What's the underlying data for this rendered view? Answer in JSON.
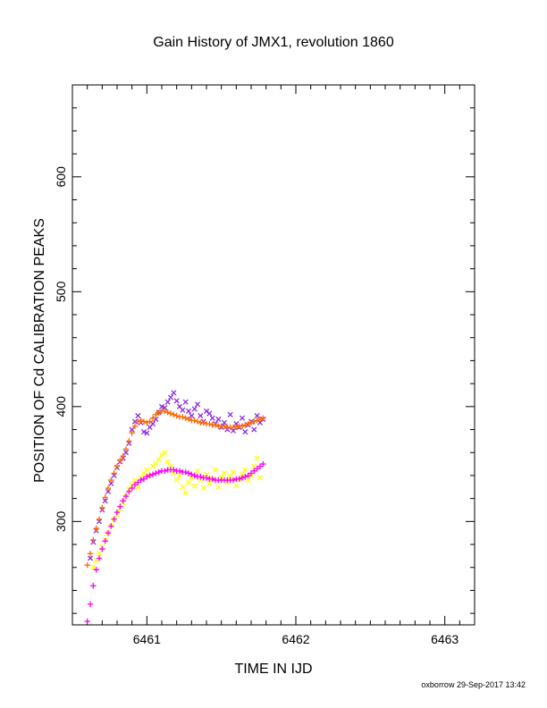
{
  "chart_data": {
    "type": "scatter",
    "title": "Gain History of JMX1, revolution 1860",
    "xlabel": "TIME IN IJD",
    "ylabel": "POSITION OF Cd CALIBRATION PEAKS",
    "xlim": [
      6460.5,
      6463.2
    ],
    "ylim": [
      210,
      680
    ],
    "x_ticks": [
      6461,
      6462,
      6463
    ],
    "y_ticks": [
      300,
      400,
      500,
      600
    ],
    "grid": false,
    "series": [
      {
        "marker": "x",
        "color": "#8a2be2",
        "points": [
          [
            6460.62,
            268
          ],
          [
            6460.64,
            282
          ],
          [
            6460.66,
            292
          ],
          [
            6460.68,
            300
          ],
          [
            6460.7,
            310
          ],
          [
            6460.72,
            318
          ],
          [
            6460.74,
            326
          ],
          [
            6460.76,
            333
          ],
          [
            6460.78,
            340
          ],
          [
            6460.8,
            347
          ],
          [
            6460.82,
            352
          ],
          [
            6460.84,
            355
          ],
          [
            6460.86,
            360
          ],
          [
            6460.88,
            368
          ],
          [
            6460.9,
            380
          ],
          [
            6460.92,
            387
          ],
          [
            6460.94,
            392
          ],
          [
            6460.96,
            386
          ],
          [
            6460.98,
            378
          ],
          [
            6461.0,
            377
          ],
          [
            6461.02,
            382
          ],
          [
            6461.04,
            385
          ],
          [
            6461.06,
            389
          ],
          [
            6461.08,
            395
          ],
          [
            6461.1,
            400
          ],
          [
            6461.12,
            399
          ],
          [
            6461.14,
            404
          ],
          [
            6461.16,
            408
          ],
          [
            6461.18,
            412
          ],
          [
            6461.2,
            405
          ],
          [
            6461.22,
            400
          ],
          [
            6461.24,
            397
          ],
          [
            6461.26,
            404
          ],
          [
            6461.28,
            396
          ],
          [
            6461.3,
            392
          ],
          [
            6461.32,
            398
          ],
          [
            6461.34,
            402
          ],
          [
            6461.36,
            392
          ],
          [
            6461.38,
            387
          ],
          [
            6461.4,
            396
          ],
          [
            6461.42,
            394
          ],
          [
            6461.44,
            390
          ],
          [
            6461.46,
            385
          ],
          [
            6461.48,
            389
          ],
          [
            6461.5,
            382
          ],
          [
            6461.52,
            386
          ],
          [
            6461.54,
            380
          ],
          [
            6461.56,
            393
          ],
          [
            6461.58,
            379
          ],
          [
            6461.6,
            385
          ],
          [
            6461.62,
            382
          ],
          [
            6461.64,
            390
          ],
          [
            6461.66,
            378
          ],
          [
            6461.68,
            384
          ],
          [
            6461.7,
            387
          ],
          [
            6461.72,
            380
          ],
          [
            6461.74,
            392
          ],
          [
            6461.76,
            386
          ],
          [
            6461.78,
            389
          ]
        ]
      },
      {
        "marker": "+",
        "color": "#ff6a00",
        "points": [
          [
            6460.6,
            262
          ],
          [
            6460.62,
            272
          ],
          [
            6460.64,
            284
          ],
          [
            6460.66,
            294
          ],
          [
            6460.68,
            302
          ],
          [
            6460.7,
            312
          ],
          [
            6460.72,
            321
          ],
          [
            6460.74,
            329
          ],
          [
            6460.76,
            336
          ],
          [
            6460.78,
            342
          ],
          [
            6460.8,
            348
          ],
          [
            6460.82,
            353
          ],
          [
            6460.84,
            357
          ],
          [
            6460.86,
            363
          ],
          [
            6460.88,
            370
          ],
          [
            6460.9,
            377
          ],
          [
            6460.92,
            383
          ],
          [
            6460.94,
            387
          ],
          [
            6460.96,
            388
          ],
          [
            6460.98,
            387
          ],
          [
            6461.0,
            386
          ],
          [
            6461.02,
            387
          ],
          [
            6461.04,
            390
          ],
          [
            6461.06,
            393
          ],
          [
            6461.08,
            395
          ],
          [
            6461.1,
            396
          ],
          [
            6461.12,
            396
          ],
          [
            6461.14,
            395
          ],
          [
            6461.16,
            394
          ],
          [
            6461.18,
            393
          ],
          [
            6461.2,
            392
          ],
          [
            6461.22,
            391
          ],
          [
            6461.24,
            391
          ],
          [
            6461.26,
            390
          ],
          [
            6461.28,
            389
          ],
          [
            6461.3,
            388
          ],
          [
            6461.32,
            388
          ],
          [
            6461.34,
            387
          ],
          [
            6461.36,
            386
          ],
          [
            6461.38,
            386
          ],
          [
            6461.4,
            385
          ],
          [
            6461.42,
            385
          ],
          [
            6461.44,
            384
          ],
          [
            6461.46,
            384
          ],
          [
            6461.48,
            383
          ],
          [
            6461.5,
            383
          ],
          [
            6461.52,
            383
          ],
          [
            6461.54,
            382
          ],
          [
            6461.56,
            382
          ],
          [
            6461.58,
            382
          ],
          [
            6461.6,
            382
          ],
          [
            6461.62,
            383
          ],
          [
            6461.64,
            383
          ],
          [
            6461.66,
            384
          ],
          [
            6461.68,
            385
          ],
          [
            6461.7,
            386
          ],
          [
            6461.72,
            387
          ],
          [
            6461.74,
            388
          ],
          [
            6461.76,
            389
          ],
          [
            6461.78,
            390
          ]
        ]
      },
      {
        "marker": "x",
        "color": "#ffff00",
        "points": [
          [
            6460.64,
            260
          ],
          [
            6460.66,
            266
          ],
          [
            6460.68,
            272
          ],
          [
            6460.7,
            278
          ],
          [
            6460.72,
            284
          ],
          [
            6460.74,
            290
          ],
          [
            6460.76,
            296
          ],
          [
            6460.78,
            302
          ],
          [
            6460.8,
            306
          ],
          [
            6460.82,
            311
          ],
          [
            6460.84,
            316
          ],
          [
            6460.86,
            322
          ],
          [
            6460.88,
            328
          ],
          [
            6460.9,
            332
          ],
          [
            6460.92,
            336
          ],
          [
            6460.94,
            330
          ],
          [
            6460.96,
            338
          ],
          [
            6460.98,
            342
          ],
          [
            6461.0,
            345
          ],
          [
            6461.02,
            340
          ],
          [
            6461.04,
            348
          ],
          [
            6461.06,
            350
          ],
          [
            6461.08,
            354
          ],
          [
            6461.1,
            358
          ],
          [
            6461.12,
            360
          ],
          [
            6461.14,
            352
          ],
          [
            6461.16,
            348
          ],
          [
            6461.18,
            342
          ],
          [
            6461.2,
            336
          ],
          [
            6461.22,
            340
          ],
          [
            6461.24,
            330
          ],
          [
            6461.26,
            325
          ],
          [
            6461.28,
            334
          ],
          [
            6461.3,
            338
          ],
          [
            6461.32,
            331
          ],
          [
            6461.34,
            344
          ],
          [
            6461.36,
            336
          ],
          [
            6461.38,
            329
          ],
          [
            6461.4,
            341
          ],
          [
            6461.42,
            333
          ],
          [
            6461.44,
            337
          ],
          [
            6461.46,
            345
          ],
          [
            6461.48,
            330
          ],
          [
            6461.5,
            338
          ],
          [
            6461.52,
            342
          ],
          [
            6461.54,
            334
          ],
          [
            6461.56,
            339
          ],
          [
            6461.58,
            343
          ],
          [
            6461.6,
            331
          ],
          [
            6461.62,
            337
          ],
          [
            6461.64,
            341
          ],
          [
            6461.66,
            345
          ],
          [
            6461.68,
            336
          ],
          [
            6461.7,
            340
          ],
          [
            6461.72,
            348
          ],
          [
            6461.74,
            355
          ],
          [
            6461.76,
            338
          ]
        ]
      },
      {
        "marker": "+",
        "color": "#ff00ff",
        "points": [
          [
            6460.6,
            213
          ],
          [
            6460.62,
            228
          ],
          [
            6460.64,
            244
          ],
          [
            6460.66,
            258
          ],
          [
            6460.68,
            268
          ],
          [
            6460.7,
            276
          ],
          [
            6460.72,
            283
          ],
          [
            6460.74,
            290
          ],
          [
            6460.76,
            296
          ],
          [
            6460.78,
            302
          ],
          [
            6460.8,
            308
          ],
          [
            6460.82,
            313
          ],
          [
            6460.84,
            318
          ],
          [
            6460.86,
            322
          ],
          [
            6460.88,
            326
          ],
          [
            6460.9,
            329
          ],
          [
            6460.92,
            332
          ],
          [
            6460.94,
            334
          ],
          [
            6460.96,
            336
          ],
          [
            6460.98,
            337
          ],
          [
            6461.0,
            339
          ],
          [
            6461.02,
            340
          ],
          [
            6461.04,
            341
          ],
          [
            6461.06,
            342
          ],
          [
            6461.08,
            343
          ],
          [
            6461.1,
            344
          ],
          [
            6461.12,
            344
          ],
          [
            6461.14,
            345
          ],
          [
            6461.16,
            345
          ],
          [
            6461.18,
            345
          ],
          [
            6461.2,
            344
          ],
          [
            6461.22,
            344
          ],
          [
            6461.24,
            343
          ],
          [
            6461.26,
            343
          ],
          [
            6461.28,
            342
          ],
          [
            6461.3,
            341
          ],
          [
            6461.32,
            340
          ],
          [
            6461.34,
            339
          ],
          [
            6461.36,
            339
          ],
          [
            6461.38,
            338
          ],
          [
            6461.4,
            338
          ],
          [
            6461.42,
            337
          ],
          [
            6461.44,
            337
          ],
          [
            6461.46,
            336
          ],
          [
            6461.48,
            336
          ],
          [
            6461.5,
            336
          ],
          [
            6461.52,
            336
          ],
          [
            6461.54,
            336
          ],
          [
            6461.56,
            336
          ],
          [
            6461.58,
            336
          ],
          [
            6461.6,
            337
          ],
          [
            6461.62,
            337
          ],
          [
            6461.64,
            338
          ],
          [
            6461.66,
            339
          ],
          [
            6461.68,
            340
          ],
          [
            6461.7,
            342
          ],
          [
            6461.72,
            344
          ],
          [
            6461.74,
            346
          ],
          [
            6461.76,
            348
          ],
          [
            6461.78,
            350
          ]
        ]
      }
    ]
  },
  "footer": "oxborrow 29-Sep-2017 13:42"
}
